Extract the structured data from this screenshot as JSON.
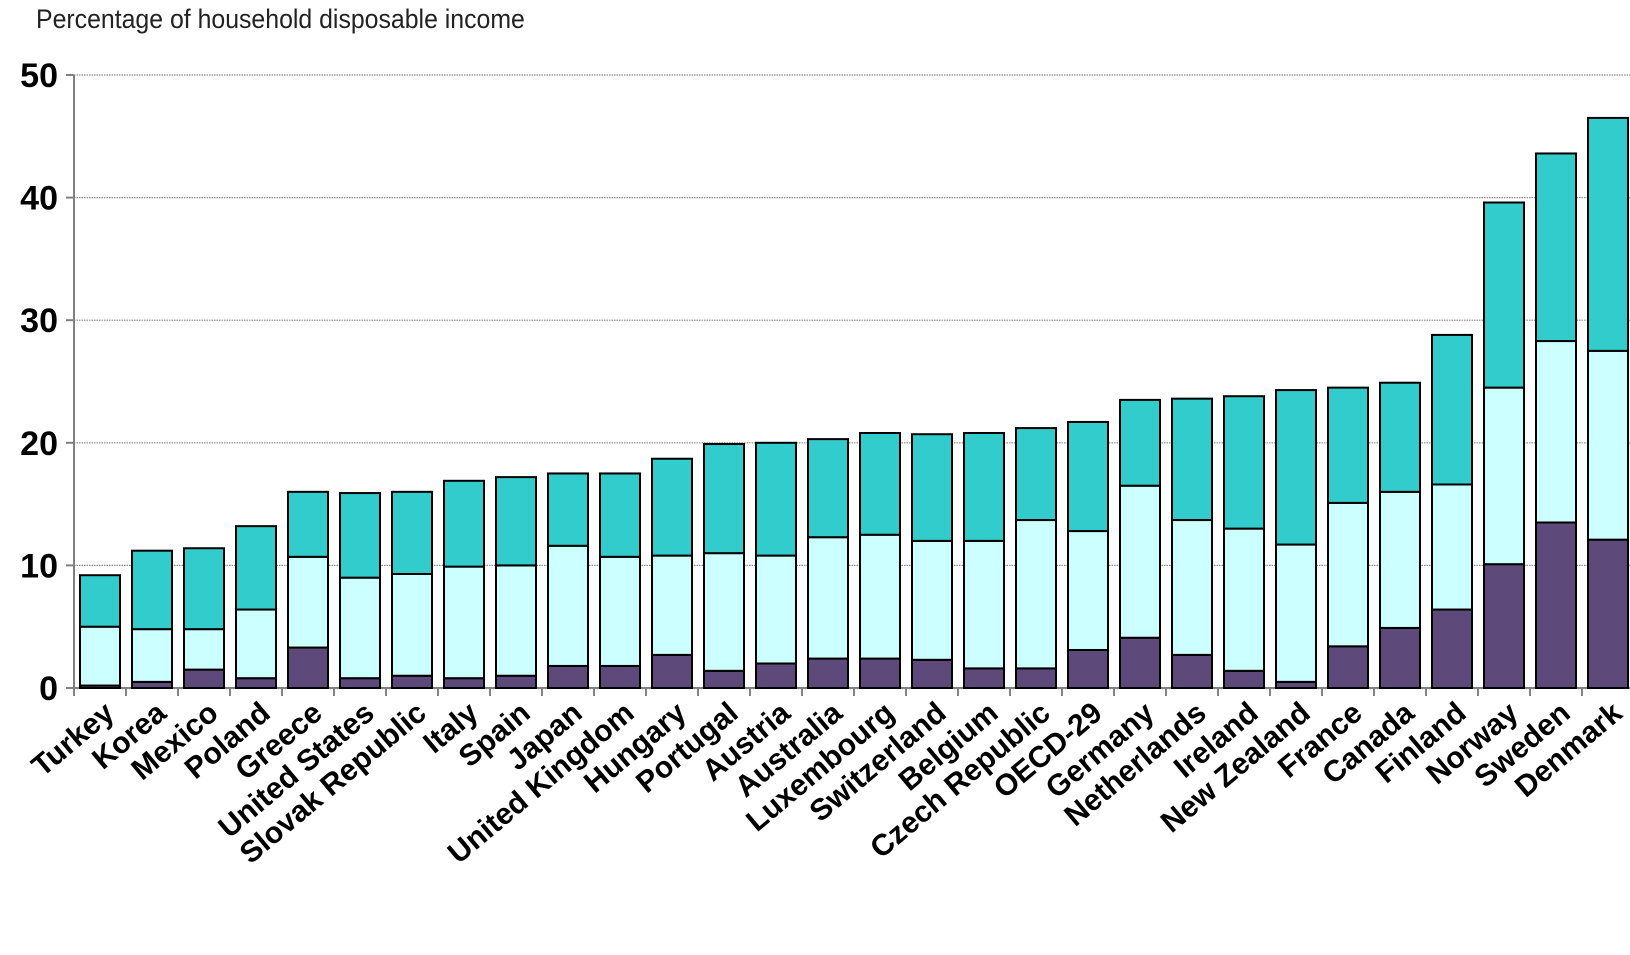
{
  "chart_data": {
    "type": "bar",
    "stacked": true,
    "title": "",
    "ylabel": "Percentage of household disposable income",
    "xlabel": "",
    "ylim": [
      0,
      50
    ],
    "yticks": [
      "0",
      "10",
      "20",
      "30",
      "40",
      "50"
    ],
    "grid": true,
    "legend": "none",
    "colors": [
      "#5e4a7a",
      "#ccffff",
      "#33cccc"
    ],
    "categories": [
      "Turkey",
      "Korea",
      "Mexico",
      "Poland",
      "Greece",
      "United States",
      "Slovak Republic",
      "Italy",
      "Spain",
      "Japan",
      "United Kingdom",
      "Hungary",
      "Portugal",
      "Austria",
      "Australia",
      "Luxembourg",
      "Switzerland",
      "Belgium",
      "Czech Republic",
      "OECD-29",
      "Germany",
      "Netherlands",
      "Ireland",
      "New Zealand",
      "France",
      "Canada",
      "Finland",
      "Norway",
      "Sweden",
      "Denmark"
    ],
    "series": [
      {
        "values": [
          0.2,
          0.5,
          1.5,
          0.8,
          3.3,
          0.8,
          1.0,
          0.8,
          1.0,
          1.8,
          1.8,
          2.7,
          1.4,
          2.0,
          2.4,
          2.4,
          2.3,
          1.6,
          1.6,
          3.1,
          4.1,
          2.7,
          1.4,
          0.5,
          3.4,
          4.9,
          6.4,
          10.1,
          13.5,
          12.1
        ]
      },
      {
        "values": [
          4.8,
          4.3,
          3.3,
          5.6,
          7.4,
          8.2,
          8.3,
          9.1,
          9.0,
          9.8,
          8.9,
          8.1,
          9.6,
          8.8,
          9.9,
          10.1,
          9.7,
          10.4,
          12.1,
          9.7,
          12.4,
          11.0,
          11.6,
          11.2,
          11.7,
          11.1,
          10.2,
          14.4,
          14.8,
          15.4
        ]
      },
      {
        "values": [
          4.2,
          6.4,
          6.6,
          6.8,
          5.3,
          6.9,
          6.7,
          7.0,
          7.2,
          5.9,
          6.8,
          7.9,
          8.9,
          9.2,
          8.0,
          8.3,
          8.7,
          8.8,
          7.5,
          8.9,
          7.0,
          9.9,
          10.8,
          12.6,
          9.4,
          8.9,
          12.2,
          15.1,
          15.3,
          19.0
        ]
      }
    ]
  }
}
